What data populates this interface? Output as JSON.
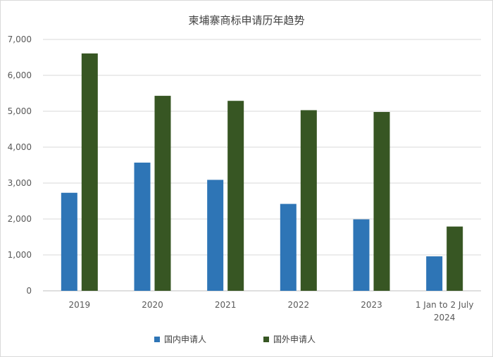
{
  "chart_data": {
    "type": "bar",
    "title": "柬埔寨商标申请历年趋势",
    "categories": [
      [
        "2019"
      ],
      [
        "2020"
      ],
      [
        "2021"
      ],
      [
        "2022"
      ],
      [
        "2023"
      ],
      [
        "1 Jan to 2 July",
        "2024"
      ]
    ],
    "series": [
      {
        "name": "国内申请人",
        "color": "#2E75B6",
        "values": [
          2730,
          3570,
          3090,
          2420,
          1990,
          960
        ]
      },
      {
        "name": "国外申请人",
        "color": "#375623",
        "values": [
          6610,
          5430,
          5290,
          5030,
          4980,
          1790
        ]
      }
    ],
    "ylim": [
      0,
      7000
    ],
    "yticks": [
      "0",
      "1,000",
      "2,000",
      "3,000",
      "4,000",
      "5,000",
      "6,000",
      "7,000"
    ],
    "grid": true,
    "legend_position": "bottom"
  }
}
